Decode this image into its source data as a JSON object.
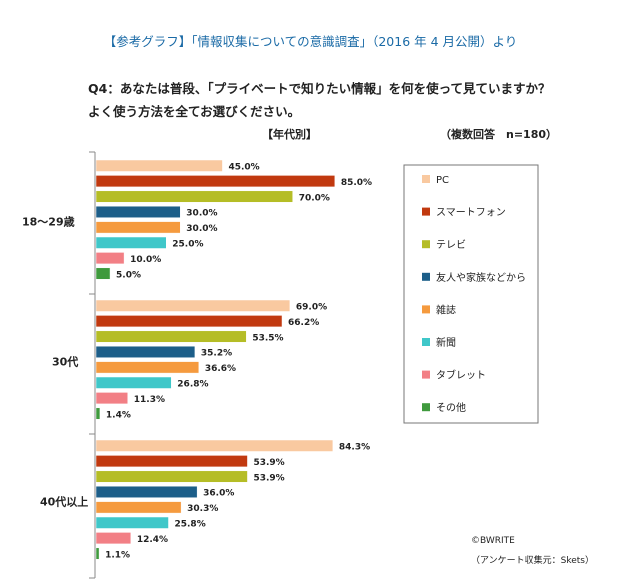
{
  "header": "【参考グラフ】「情報収集についての意識調査」（2016 年 4 月公開）より",
  "question_line1": "Q4：あなたは普段、「プライベートで知りたい情報」を何を使って見ていますか？",
  "question_line2": "よく使う方法を全てお選びください。",
  "subtitle_left": "【年代別】",
  "subtitle_right": "（複数回答　n=180）",
  "copyright": "©BWRITE",
  "source": "（アンケート収集元：Skets）",
  "chart_data": {
    "type": "bar",
    "orientation": "horizontal",
    "categories": [
      "18～29歳",
      "30代",
      "40代以上"
    ],
    "series": [
      {
        "name": "PC",
        "color": "#f9c9a0",
        "values": [
          45.0,
          69.0,
          84.3
        ],
        "labels": [
          "45.0%",
          "69.0%",
          "84.3%"
        ]
      },
      {
        "name": "スマートフォン",
        "color": "#c1390f",
        "values": [
          85.0,
          66.2,
          53.9
        ],
        "labels": [
          "85.0%",
          "66.2%",
          "53.9%"
        ]
      },
      {
        "name": "テレビ",
        "color": "#b5bd26",
        "values": [
          70.0,
          53.5,
          53.9
        ],
        "labels": [
          "70.0%",
          "53.5%",
          "53.9%"
        ]
      },
      {
        "name": "友人や家族などから",
        "color": "#1c5e89",
        "values": [
          30.0,
          35.2,
          36.0
        ],
        "labels": [
          "30.0%",
          "35.2%",
          "36.0%"
        ]
      },
      {
        "name": "雑誌",
        "color": "#f59a3e",
        "values": [
          30.0,
          36.6,
          30.3
        ],
        "labels": [
          "30.0%",
          "36.6%",
          "30.3%"
        ]
      },
      {
        "name": "新聞",
        "color": "#3fc7c9",
        "values": [
          25.0,
          26.8,
          25.8
        ],
        "labels": [
          "25.0%",
          "26.8%",
          "25.8%"
        ]
      },
      {
        "name": "タブレット",
        "color": "#f27f85",
        "values": [
          10.0,
          11.3,
          12.4
        ],
        "labels": [
          "10.0%",
          "11.3%",
          "12.4%"
        ]
      },
      {
        "name": "その他",
        "color": "#3f9a3d",
        "values": [
          5.0,
          1.4,
          1.1
        ],
        "labels": [
          "5.0%",
          "1.4%",
          "1.1%"
        ]
      }
    ],
    "legend_position": "right",
    "grid": false
  }
}
